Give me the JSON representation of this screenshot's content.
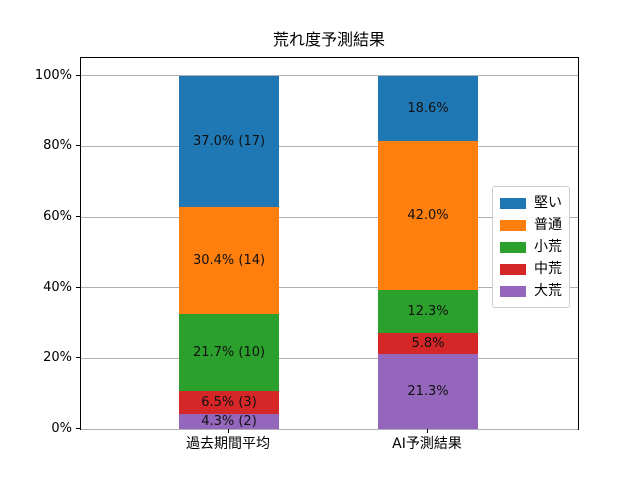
{
  "chart_data": {
    "type": "bar",
    "subtype": "stacked-percentage",
    "title": "荒れ度予測結果",
    "categories": [
      "過去期間平均",
      "AI予測結果"
    ],
    "series": [
      {
        "name": "堅い",
        "color": "#1f77b4",
        "values": [
          37.0,
          18.6
        ],
        "labels": [
          "37.0% (17)",
          "18.6%"
        ]
      },
      {
        "name": "普通",
        "color": "#ff7f0e",
        "values": [
          30.4,
          42.0
        ],
        "labels": [
          "30.4% (14)",
          "42.0%"
        ]
      },
      {
        "name": "小荒",
        "color": "#2ca02c",
        "values": [
          21.7,
          12.3
        ],
        "labels": [
          "21.7% (10)",
          "12.3%"
        ]
      },
      {
        "name": "中荒",
        "color": "#d62728",
        "values": [
          6.5,
          5.8
        ],
        "labels": [
          "6.5% (3)",
          "5.8%"
        ]
      },
      {
        "name": "大荒",
        "color": "#9467bd",
        "values": [
          4.3,
          21.3
        ],
        "labels": [
          "4.3% (2)",
          "21.3%"
        ]
      }
    ],
    "stack_order_bottom_to_top": [
      "大荒",
      "中荒",
      "小荒",
      "普通",
      "堅い"
    ],
    "xlabel": "",
    "ylabel": "",
    "y_ticks": [
      {
        "value": 0,
        "label": "0%"
      },
      {
        "value": 20,
        "label": "20%"
      },
      {
        "value": 40,
        "label": "40%"
      },
      {
        "value": 60,
        "label": "60%"
      },
      {
        "value": 80,
        "label": "80%"
      },
      {
        "value": 100,
        "label": "100%"
      }
    ],
    "ylim": [
      0,
      105
    ],
    "grid": "horizontal",
    "legend_position": "center-right",
    "legend_entries": [
      "堅い",
      "普通",
      "小荒",
      "中荒",
      "大荒"
    ]
  }
}
